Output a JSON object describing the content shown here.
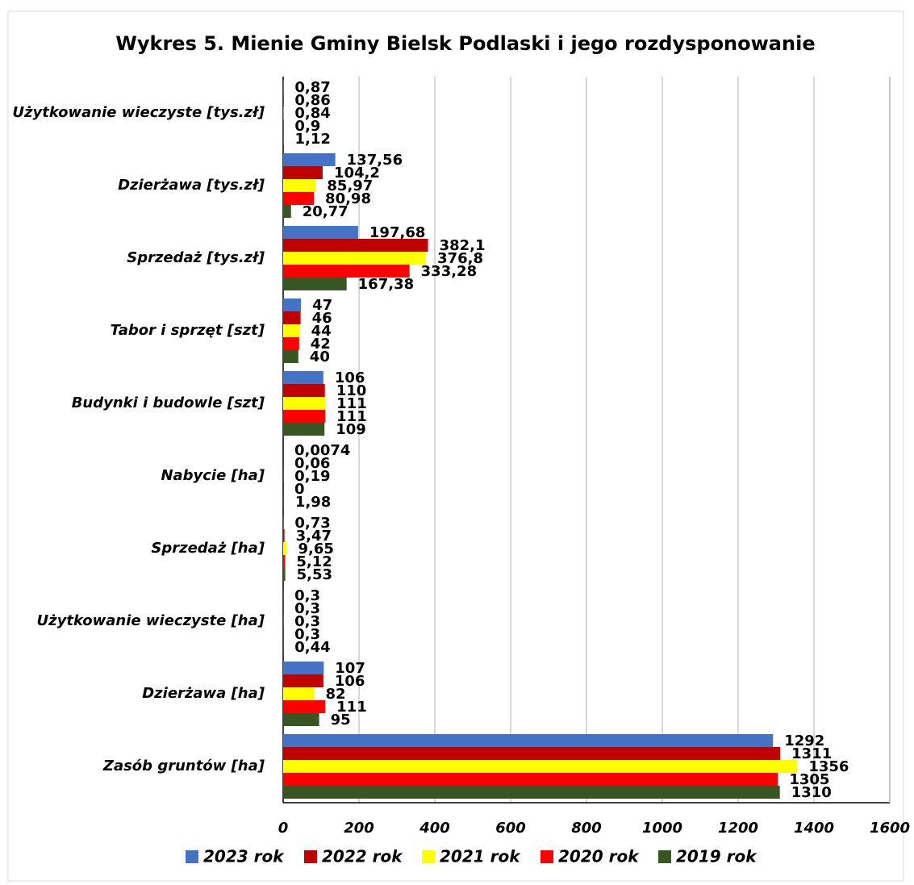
{
  "chart_data": {
    "type": "hbar",
    "title": "Wykres 5. Mienie Gminy Bielsk Podlaski i jego rozdysponowanie",
    "categories": [
      "Użytkowanie wieczyste [tys.zł]",
      "Dzierżawa [tys.zł]",
      "Sprzedaż [tys.zł]",
      "Tabor i sprzęt [szt]",
      "Budynki i budowle [szt]",
      "Nabycie [ha]",
      "Sprzedaż [ha]",
      "Użytkowanie wieczyste [ha]",
      "Dzierżawa [ha]",
      "Zasób gruntów [ha]"
    ],
    "series": [
      {
        "name": "2023 rok",
        "color": "#4472c4",
        "values": [
          0.87,
          137.56,
          197.68,
          47,
          106,
          0.0074,
          0.73,
          0.3,
          107,
          1292
        ],
        "value_labels": [
          "0,87",
          "137,56",
          "197,68",
          "47",
          "106",
          "0,0074",
          "0,73",
          "0,3",
          "107",
          "1292"
        ]
      },
      {
        "name": "2022 rok",
        "color": "#c00000",
        "values": [
          0.86,
          104.2,
          382.1,
          46,
          110,
          0.06,
          3.47,
          0.3,
          106,
          1311
        ],
        "value_labels": [
          "0,86",
          "104,2",
          "382,1",
          "46",
          "110",
          "0,06",
          "3,47",
          "0,3",
          "106",
          "1311"
        ]
      },
      {
        "name": "2021 rok",
        "color": "#ffff00",
        "values": [
          0.84,
          85.97,
          376.8,
          44,
          111,
          0.19,
          9.65,
          0.3,
          82,
          1356
        ],
        "value_labels": [
          "0,84",
          "85,97",
          "376,8",
          "44",
          "111",
          "0,19",
          "9,65",
          "0,3",
          "82",
          "1356"
        ]
      },
      {
        "name": "2020 rok",
        "color": "#ff0000",
        "values": [
          0.9,
          80.98,
          333.28,
          42,
          111,
          0,
          5.12,
          0.3,
          111,
          1305
        ],
        "value_labels": [
          "0,9",
          "80,98",
          "333,28",
          "42",
          "111",
          "0",
          "5,12",
          "0,3",
          "111",
          "1305"
        ]
      },
      {
        "name": "2019 rok",
        "color": "#375623",
        "values": [
          1.12,
          20.77,
          167.38,
          40,
          109,
          1.98,
          5.53,
          0.44,
          95,
          1310
        ],
        "value_labels": [
          "1,12",
          "20,77",
          "167,38",
          "40",
          "109",
          "1,98",
          "5,53",
          "0,44",
          "95",
          "1310"
        ]
      }
    ],
    "xlim": [
      0,
      1600
    ],
    "xticks": [
      0,
      200,
      400,
      600,
      800,
      1000,
      1200,
      1400,
      1600
    ],
    "grid": true,
    "legend": "bottom"
  }
}
